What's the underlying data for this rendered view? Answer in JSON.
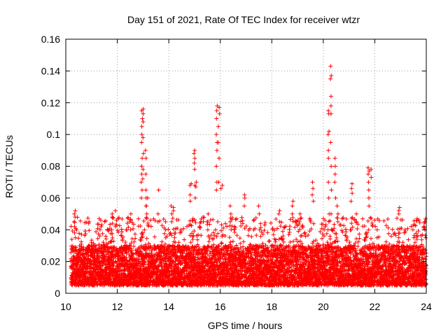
{
  "chart_data": {
    "type": "scatter",
    "title": "Day 151 of 2021, Rate Of TEC Index for receiver wtzr",
    "xlabel": "GPS time / hours",
    "ylabel": "ROTI / TECUs",
    "xlim": [
      10,
      24
    ],
    "ylim": [
      0,
      0.16
    ],
    "xticks": [
      10,
      12,
      14,
      16,
      18,
      20,
      22,
      24
    ],
    "xtick_labels": [
      "10",
      "12",
      "14",
      "16",
      "18",
      "20",
      "22",
      "24"
    ],
    "yticks": [
      0,
      0.02,
      0.04,
      0.06,
      0.08,
      0.1,
      0.12,
      0.14,
      0.16
    ],
    "ytick_labels": [
      "0",
      "0.02",
      "0.04",
      "0.06",
      "0.08",
      "0.1",
      "0.12",
      "0.14",
      "0.16"
    ],
    "grid": true,
    "marker": "+",
    "color": "#ff0000",
    "series": [
      {
        "name": "ROTI",
        "description": "Dense band of values mostly between 0.005 and 0.03 across 10.2–24 h, with spikes",
        "band": {
          "x_start": 10.2,
          "x_end": 24,
          "y_low": 0.005,
          "y_high": 0.03,
          "step_h": 0.006
        },
        "clusters": [
          {
            "x": 10.35,
            "y": [
              0.035,
              0.038,
              0.042,
              0.045,
              0.048,
              0.05,
              0.052
            ]
          },
          {
            "x": 10.9,
            "y": [
              0.028,
              0.03,
              0.044,
              0.045
            ]
          },
          {
            "x": 11.0,
            "y": [
              0.03,
              0.032
            ]
          },
          {
            "x": 11.8,
            "y": [
              0.04,
              0.044,
              0.048,
              0.05
            ]
          },
          {
            "x": 11.95,
            "y": [
              0.042,
              0.046,
              0.052
            ]
          },
          {
            "x": 12.5,
            "y": [
              0.04,
              0.045,
              0.05
            ]
          },
          {
            "x": 12.95,
            "y": [
              0.06,
              0.065,
              0.07,
              0.075,
              0.08,
              0.085,
              0.095,
              0.1,
              0.105,
              0.11,
              0.115
            ]
          },
          {
            "x": 13.0,
            "y": [
              0.072,
              0.078,
              0.088,
              0.098,
              0.108,
              0.113,
              0.116
            ]
          },
          {
            "x": 13.1,
            "y": [
              0.055,
              0.06,
              0.065,
              0.075,
              0.085,
              0.09
            ]
          },
          {
            "x": 13.15,
            "y": [
              0.05,
              0.055,
              0.06
            ]
          },
          {
            "x": 13.6,
            "y": [
              0.045,
              0.05,
              0.065
            ]
          },
          {
            "x": 13.9,
            "y": [
              0.035,
              0.04,
              0.045
            ]
          },
          {
            "x": 14.1,
            "y": [
              0.045,
              0.05,
              0.055
            ]
          },
          {
            "x": 14.2,
            "y": [
              0.052,
              0.054
            ]
          },
          {
            "x": 14.85,
            "y": [
              0.058,
              0.062,
              0.068,
              0.069
            ]
          },
          {
            "x": 15.0,
            "y": [
              0.06,
              0.068,
              0.078,
              0.082,
              0.085,
              0.088,
              0.09
            ]
          },
          {
            "x": 15.05,
            "y": [
              0.067,
              0.07
            ]
          },
          {
            "x": 15.5,
            "y": [
              0.04,
              0.045,
              0.05
            ]
          },
          {
            "x": 15.85,
            "y": [
              0.065,
              0.07,
              0.08,
              0.09,
              0.095,
              0.1,
              0.11,
              0.115,
              0.118
            ]
          },
          {
            "x": 15.95,
            "y": [
              0.07,
              0.085,
              0.095,
              0.105,
              0.113,
              0.117
            ]
          },
          {
            "x": 16.05,
            "y": [
              0.066,
              0.068
            ]
          },
          {
            "x": 16.4,
            "y": [
              0.04,
              0.045,
              0.05,
              0.055
            ]
          },
          {
            "x": 16.95,
            "y": [
              0.055,
              0.06,
              0.062
            ]
          },
          {
            "x": 17.5,
            "y": [
              0.04,
              0.05,
              0.055
            ]
          },
          {
            "x": 18.3,
            "y": [
              0.045,
              0.05,
              0.052
            ]
          },
          {
            "x": 18.8,
            "y": [
              0.05,
              0.055,
              0.058
            ]
          },
          {
            "x": 19.1,
            "y": [
              0.045,
              0.05
            ]
          },
          {
            "x": 19.6,
            "y": [
              0.058,
              0.062,
              0.066,
              0.07
            ]
          },
          {
            "x": 20.2,
            "y": [
              0.04,
              0.05,
              0.06,
              0.07,
              0.085,
              0.09,
              0.1,
              0.102,
              0.113,
              0.115
            ]
          },
          {
            "x": 20.3,
            "y": [
              0.05,
              0.065,
              0.08,
              0.095,
              0.113,
              0.118,
              0.124,
              0.135,
              0.137,
              0.143
            ]
          },
          {
            "x": 20.45,
            "y": [
              0.06,
              0.07,
              0.075,
              0.08,
              0.085
            ]
          },
          {
            "x": 20.55,
            "y": [
              0.045,
              0.05,
              0.055
            ]
          },
          {
            "x": 21.1,
            "y": [
              0.058,
              0.063,
              0.066,
              0.069
            ]
          },
          {
            "x": 21.3,
            "y": [
              0.045,
              0.05
            ]
          },
          {
            "x": 21.75,
            "y": [
              0.055,
              0.06,
              0.065,
              0.07,
              0.075,
              0.077,
              0.079
            ]
          },
          {
            "x": 21.85,
            "y": [
              0.073,
              0.078
            ]
          },
          {
            "x": 22.1,
            "y": [
              0.03,
              0.035,
              0.04
            ]
          },
          {
            "x": 22.95,
            "y": [
              0.05,
              0.052,
              0.054
            ]
          },
          {
            "x": 23.5,
            "y": [
              0.03,
              0.035,
              0.04
            ]
          },
          {
            "x": 23.95,
            "y": [
              0.035,
              0.04,
              0.045
            ]
          }
        ]
      }
    ]
  }
}
